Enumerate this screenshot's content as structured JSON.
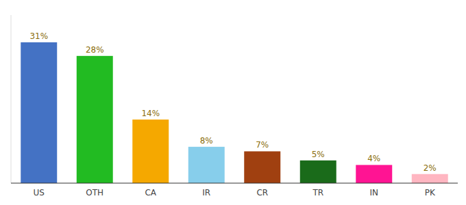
{
  "chart_data": {
    "type": "bar",
    "categories": [
      "US",
      "OTH",
      "CA",
      "IR",
      "CR",
      "TR",
      "IN",
      "PK"
    ],
    "values": [
      31,
      28,
      14,
      8,
      7,
      5,
      4,
      2
    ],
    "value_labels": [
      "31%",
      "28%",
      "14%",
      "8%",
      "7%",
      "5%",
      "4%",
      "2%"
    ],
    "colors": [
      "#4472c4",
      "#22bb22",
      "#f5a800",
      "#87ceeb",
      "#a04010",
      "#1a6b1a",
      "#ff1493",
      "#ffb6c1"
    ],
    "ylim": [
      0,
      37
    ],
    "tick_labels": "x",
    "data_labels": true,
    "grid": false
  }
}
